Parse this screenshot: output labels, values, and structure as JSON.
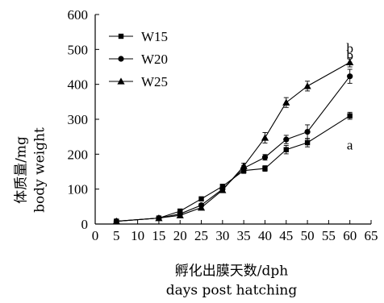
{
  "chart_data": {
    "type": "line",
    "title": "",
    "ylabel_lines": [
      "体质量/mg",
      "body weight"
    ],
    "xlabel_lines": [
      "孵化出膜天数/dph",
      "days post hatching"
    ],
    "xlim": [
      0,
      65
    ],
    "ylim": [
      0,
      600
    ],
    "xticks": [
      0,
      5,
      10,
      15,
      20,
      25,
      30,
      35,
      40,
      45,
      50,
      55,
      60,
      65
    ],
    "yticks": [
      0,
      100,
      200,
      300,
      400,
      500,
      600
    ],
    "grid": false,
    "legend_position": "top-left",
    "series": [
      {
        "name": "W15",
        "marker": "square",
        "x": [
          5,
          15,
          20,
          25,
          30,
          35,
          40,
          45,
          50,
          60
        ],
        "y": [
          8,
          17,
          37,
          72,
          108,
          153,
          159,
          213,
          233,
          310
        ],
        "err": [
          3,
          4,
          5,
          5,
          6,
          8,
          8,
          12,
          12,
          10
        ],
        "end_label": "a"
      },
      {
        "name": "W20",
        "marker": "circle",
        "x": [
          5,
          15,
          20,
          25,
          30,
          35,
          40,
          45,
          50,
          60
        ],
        "y": [
          8,
          17,
          29,
          54,
          100,
          160,
          191,
          242,
          264,
          423
        ],
        "err": [
          3,
          4,
          5,
          5,
          6,
          8,
          8,
          12,
          20,
          20
        ],
        "end_label": "b"
      },
      {
        "name": "W25",
        "marker": "triangle",
        "x": [
          5,
          15,
          20,
          25,
          30,
          35,
          40,
          45,
          50,
          60
        ],
        "y": [
          8,
          17,
          25,
          47,
          97,
          166,
          247,
          348,
          395,
          463
        ],
        "err": [
          3,
          4,
          5,
          5,
          6,
          8,
          15,
          14,
          14,
          13
        ],
        "end_label": "b"
      }
    ]
  }
}
